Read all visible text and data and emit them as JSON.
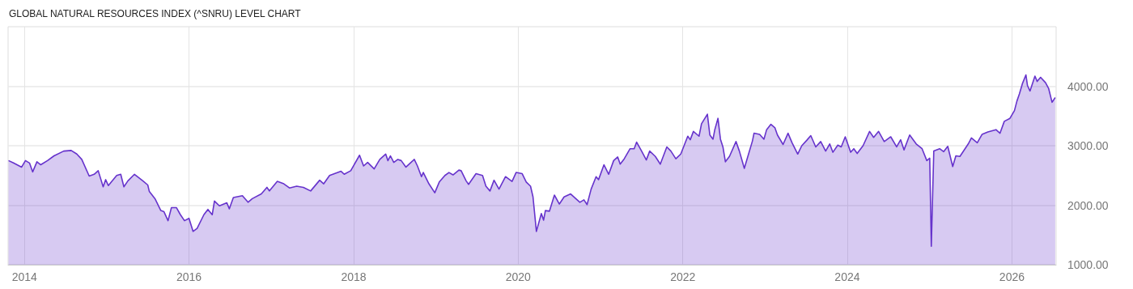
{
  "chart_data": {
    "type": "area",
    "title": "GLOBAL NATURAL RESOURCES INDEX (^SNRU) LEVEL CHART",
    "x": [
      "2013-10-22",
      "2013-11-13",
      "2013-12-19",
      "2014-01-05",
      "2014-01-23",
      "2014-02-06",
      "2014-02-25",
      "2014-03-14",
      "2014-04-13",
      "2014-05-12",
      "2014-06-24",
      "2014-07-27",
      "2014-08-21",
      "2014-09-12",
      "2014-10-15",
      "2014-11-06",
      "2014-11-24",
      "2014-12-16",
      "2014-12-27",
      "2015-01-08",
      "2015-02-14",
      "2015-03-04",
      "2015-03-18",
      "2015-04-05",
      "2015-05-04",
      "2015-06-10",
      "2015-07-02",
      "2015-07-09",
      "2015-08-03",
      "2015-08-29",
      "2015-09-12",
      "2015-09-30",
      "2015-10-15",
      "2015-11-06",
      "2015-11-24",
      "2015-12-12",
      "2016-01-01",
      "2016-01-19",
      "2016-02-06",
      "2016-03-07",
      "2016-03-25",
      "2016-04-13",
      "2016-04-23",
      "2016-05-15",
      "2016-06-17",
      "2016-06-28",
      "2016-07-16",
      "2016-08-25",
      "2016-09-19",
      "2016-10-08",
      "2016-11-17",
      "2016-12-12",
      "2016-12-23",
      "2017-01-27",
      "2017-02-25",
      "2017-03-22",
      "2017-04-23",
      "2017-05-23",
      "2017-06-24",
      "2017-08-03",
      "2017-08-21",
      "2017-09-16",
      "2017-11-06",
      "2017-11-20",
      "2017-12-19",
      "2018-01-27",
      "2018-02-14",
      "2018-03-04",
      "2018-04-02",
      "2018-04-27",
      "2018-05-23",
      "2018-06-02",
      "2018-06-13",
      "2018-06-28",
      "2018-07-16",
      "2018-07-31",
      "2018-08-21",
      "2018-09-27",
      "2018-10-11",
      "2018-10-29",
      "2018-11-06",
      "2018-12-01",
      "2018-12-27",
      "2019-01-16",
      "2019-02-10",
      "2019-02-28",
      "2019-03-18",
      "2019-04-13",
      "2019-04-23",
      "2019-05-15",
      "2019-05-26",
      "2019-06-28",
      "2019-07-27",
      "2019-08-11",
      "2019-08-29",
      "2019-09-16",
      "2019-10-08",
      "2019-11-06",
      "2019-12-05",
      "2019-12-23",
      "2020-01-19",
      "2020-02-06",
      "2020-02-25",
      "2020-03-07",
      "2020-03-22",
      "2020-04-13",
      "2020-04-23",
      "2020-05-01",
      "2020-05-19",
      "2020-06-10",
      "2020-07-02",
      "2020-07-23",
      "2020-08-21",
      "2020-10-01",
      "2020-10-19",
      "2020-11-02",
      "2020-11-20",
      "2020-12-12",
      "2020-12-23",
      "2021-01-16",
      "2021-02-06",
      "2021-02-28",
      "2021-03-18",
      "2021-03-29",
      "2021-04-16",
      "2021-05-12",
      "2021-05-30",
      "2021-06-10",
      "2021-07-02",
      "2021-07-23",
      "2021-08-07",
      "2021-09-01",
      "2021-09-23",
      "2021-10-22",
      "2021-11-09",
      "2021-12-01",
      "2021-12-23",
      "2022-01-23",
      "2022-02-03",
      "2022-02-17",
      "2022-03-14",
      "2022-03-25",
      "2022-04-20",
      "2022-05-01",
      "2022-05-15",
      "2022-05-23",
      "2022-06-06",
      "2022-06-17",
      "2022-06-28",
      "2022-07-09",
      "2022-07-27",
      "2022-08-25",
      "2022-09-09",
      "2022-10-01",
      "2022-10-15",
      "2022-11-06",
      "2022-11-13",
      "2022-12-08",
      "2022-12-27",
      "2023-01-08",
      "2023-01-27",
      "2023-02-14",
      "2023-02-25",
      "2023-03-22",
      "2023-04-13",
      "2023-05-01",
      "2023-05-26",
      "2023-06-13",
      "2023-07-05",
      "2023-07-23",
      "2023-08-14",
      "2023-09-05",
      "2023-09-27",
      "2023-10-15",
      "2023-10-29",
      "2023-11-20",
      "2023-12-05",
      "2023-12-23",
      "2024-01-16",
      "2024-01-30",
      "2024-02-14",
      "2024-03-11",
      "2024-04-09",
      "2024-04-27",
      "2024-05-19",
      "2024-06-13",
      "2024-07-12",
      "2024-08-07",
      "2024-08-25",
      "2024-09-09",
      "2024-10-04",
      "2024-11-02",
      "2024-11-28",
      "2024-12-19",
      "2025-01-01",
      "2025-01-08",
      "2025-01-19",
      "2025-02-14",
      "2025-03-04",
      "2025-03-22",
      "2025-04-13",
      "2025-04-27",
      "2025-05-15",
      "2025-06-21",
      "2025-07-05",
      "2025-07-31",
      "2025-08-21",
      "2025-09-16",
      "2025-10-22",
      "2025-11-09",
      "2025-11-28",
      "2025-12-23",
      "2026-01-12",
      "2026-01-23",
      "2026-02-03",
      "2026-02-17",
      "2026-03-04",
      "2026-03-11",
      "2026-03-22",
      "2026-04-13",
      "2026-04-23",
      "2026-05-08",
      "2026-05-30",
      "2026-06-13",
      "2026-06-28",
      "2026-07-12"
    ],
    "series": [
      {
        "color": "#6633cc",
        "values": [
          2750,
          2710,
          2640,
          2750,
          2710,
          2560,
          2730,
          2680,
          2750,
          2830,
          2910,
          2920,
          2860,
          2770,
          2490,
          2520,
          2580,
          2310,
          2430,
          2330,
          2500,
          2520,
          2310,
          2410,
          2520,
          2410,
          2340,
          2230,
          2110,
          1910,
          1890,
          1740,
          1960,
          1960,
          1840,
          1740,
          1780,
          1560,
          1610,
          1840,
          1930,
          1840,
          2070,
          1990,
          2040,
          1940,
          2130,
          2160,
          2050,
          2110,
          2190,
          2300,
          2240,
          2400,
          2360,
          2290,
          2320,
          2300,
          2240,
          2420,
          2360,
          2500,
          2570,
          2520,
          2580,
          2840,
          2660,
          2720,
          2610,
          2770,
          2860,
          2750,
          2830,
          2720,
          2770,
          2750,
          2640,
          2770,
          2660,
          2480,
          2550,
          2360,
          2210,
          2390,
          2500,
          2550,
          2510,
          2590,
          2580,
          2410,
          2350,
          2530,
          2500,
          2320,
          2240,
          2420,
          2270,
          2480,
          2400,
          2550,
          2530,
          2390,
          2320,
          2140,
          1560,
          1860,
          1750,
          1910,
          1900,
          2170,
          2020,
          2140,
          2190,
          2050,
          2090,
          2010,
          2270,
          2480,
          2430,
          2680,
          2520,
          2750,
          2810,
          2690,
          2780,
          2950,
          2950,
          3060,
          2910,
          2760,
          2910,
          2820,
          2690,
          2980,
          2910,
          2780,
          2860,
          3160,
          3100,
          3240,
          3160,
          3370,
          3530,
          3180,
          3110,
          3270,
          3460,
          3110,
          2980,
          2730,
          2820,
          3070,
          2910,
          2620,
          2800,
          3080,
          3210,
          3190,
          3110,
          3270,
          3360,
          3300,
          3180,
          3020,
          3210,
          3050,
          2860,
          3000,
          3090,
          3170,
          2980,
          3070,
          2910,
          3030,
          2890,
          3010,
          2980,
          3150,
          2890,
          2950,
          2870,
          3000,
          3240,
          3140,
          3240,
          3070,
          3150,
          2980,
          3100,
          2930,
          3180,
          3030,
          2950,
          2750,
          2790,
          1310,
          2910,
          2950,
          2900,
          2990,
          2650,
          2830,
          2820,
          3030,
          3130,
          3050,
          3190,
          3230,
          3270,
          3210,
          3410,
          3460,
          3590,
          3750,
          3870,
          4050,
          4190,
          4010,
          3920,
          4170,
          4080,
          4150,
          4060,
          3960,
          3730,
          3810
        ]
      }
    ],
    "xlim": [
      "2013-10-20",
      "2026-07-16"
    ],
    "xticks": [
      "2014",
      "2016",
      "2018",
      "2020",
      "2022",
      "2024",
      "2026"
    ],
    "ylim": [
      1000,
      5000
    ],
    "yticks": [
      {
        "value": 1000,
        "label": "1000.00"
      },
      {
        "value": 2000,
        "label": "2000.00"
      },
      {
        "value": 3000,
        "label": "3000.00"
      },
      {
        "value": 4000,
        "label": "4000.00"
      }
    ],
    "grid": true
  }
}
